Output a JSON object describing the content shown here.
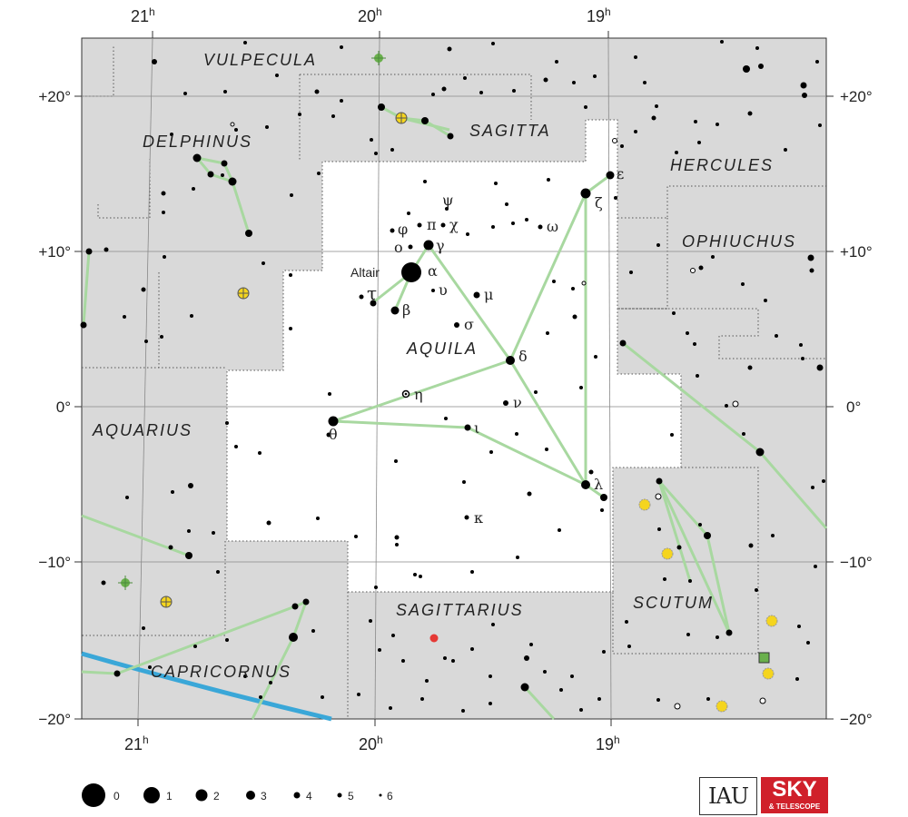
{
  "ra_labels": [
    {
      "h": "21",
      "sup": "h"
    },
    {
      "h": "20",
      "sup": "h"
    },
    {
      "h": "19",
      "sup": "h"
    }
  ],
  "dec_labels": [
    "+20°",
    "+10°",
    "0°",
    "−10°",
    "−20°"
  ],
  "constellations": {
    "vulpecula": "VULPECULA",
    "sagitta": "SAGITTA",
    "delphinus": "DELPHINUS",
    "hercules": "HERCULES",
    "ophiuchus": "OPHIUCHUS",
    "aquila": "AQUILA",
    "aquarius": "AQUARIUS",
    "sagittarius": "SAGITTARIUS",
    "scutum": "SCUTUM",
    "capricornus": "CAPRICORNUS"
  },
  "star_labels": {
    "altair": "Altair",
    "alpha": "α",
    "beta": "β",
    "gamma": "γ",
    "delta": "δ",
    "epsilon": "ε",
    "zeta": "ζ",
    "eta": "η",
    "theta": "θ",
    "iota": "ι",
    "kappa": "κ",
    "lambda": "λ",
    "mu": "μ",
    "nu": "ν",
    "omicron": "ο",
    "pi": "π",
    "sigma": "σ",
    "tau": "τ",
    "upsilon": "υ",
    "phi": "φ",
    "chi": "χ",
    "psi": "ψ",
    "omega": "ω"
  },
  "magnitude_legend": [
    "0",
    "1",
    "2",
    "3",
    "4",
    "5",
    "6"
  ],
  "logos": {
    "iau": "IAU",
    "sky": "SKY",
    "sky_sub": "& TELESCOPE"
  },
  "colors": {
    "outside_fill": "#d9d9d9",
    "aquila_fill": "#ffffff",
    "stick_line": "#a8d8a0",
    "ecliptic": "#3aa7d8",
    "grid": "#888888",
    "star": "#000000",
    "cluster": "#f5d51e",
    "nebula": "#6ab04c",
    "galaxy": "#e53935"
  }
}
